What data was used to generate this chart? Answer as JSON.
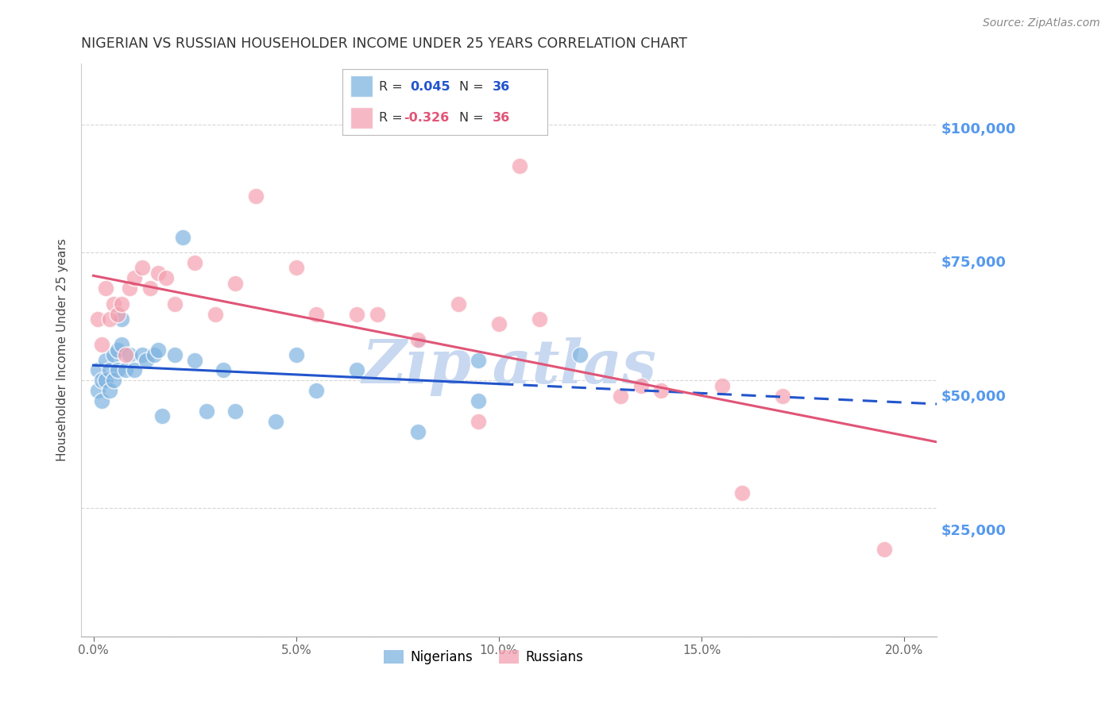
{
  "title": "NIGERIAN VS RUSSIAN HOUSEHOLDER INCOME UNDER 25 YEARS CORRELATION CHART",
  "source": "Source: ZipAtlas.com",
  "ylabel": "Householder Income Under 25 years",
  "xlabel_ticks": [
    "0.0%",
    "5.0%",
    "10.0%",
    "15.0%",
    "20.0%"
  ],
  "xlabel_vals": [
    0.0,
    0.05,
    0.1,
    0.15,
    0.2
  ],
  "ytick_vals": [
    0,
    25000,
    50000,
    75000,
    100000
  ],
  "ytick_labels": [
    "",
    "$25,000",
    "$50,000",
    "$75,000",
    "$100,000"
  ],
  "xlim": [
    -0.003,
    0.208
  ],
  "ylim": [
    5000,
    112000
  ],
  "nigerian_R": 0.045,
  "nigerian_N": 36,
  "russian_R": -0.326,
  "russian_N": 36,
  "nigerian_color": "#7eb3e0",
  "russian_color": "#f4a0b0",
  "nigerian_line_color": "#2255cc",
  "russian_line_color": "#e05577",
  "background_color": "#ffffff",
  "grid_color": "#cccccc",
  "title_color": "#333333",
  "axis_label_color": "#444444",
  "ytick_color": "#5599ee",
  "watermark_color": "#c8d8f0",
  "nigerian_x": [
    0.001,
    0.001,
    0.002,
    0.002,
    0.003,
    0.003,
    0.004,
    0.004,
    0.005,
    0.005,
    0.006,
    0.006,
    0.007,
    0.007,
    0.008,
    0.009,
    0.01,
    0.012,
    0.013,
    0.015,
    0.016,
    0.017,
    0.02,
    0.022,
    0.025,
    0.028,
    0.032,
    0.035,
    0.045,
    0.05,
    0.055,
    0.065,
    0.08,
    0.095,
    0.095,
    0.12
  ],
  "nigerian_y": [
    52000,
    48000,
    50000,
    46000,
    54000,
    50000,
    52000,
    48000,
    55000,
    50000,
    56000,
    52000,
    62000,
    57000,
    52000,
    55000,
    52000,
    55000,
    54000,
    55000,
    56000,
    43000,
    55000,
    78000,
    54000,
    44000,
    52000,
    44000,
    42000,
    55000,
    48000,
    52000,
    40000,
    54000,
    46000,
    55000
  ],
  "russian_x": [
    0.001,
    0.002,
    0.003,
    0.004,
    0.005,
    0.006,
    0.007,
    0.008,
    0.009,
    0.01,
    0.012,
    0.014,
    0.016,
    0.018,
    0.02,
    0.025,
    0.03,
    0.035,
    0.04,
    0.05,
    0.055,
    0.065,
    0.07,
    0.08,
    0.09,
    0.095,
    0.1,
    0.105,
    0.11,
    0.13,
    0.135,
    0.14,
    0.155,
    0.16,
    0.17,
    0.195
  ],
  "russian_y": [
    62000,
    57000,
    68000,
    62000,
    65000,
    63000,
    65000,
    55000,
    68000,
    70000,
    72000,
    68000,
    71000,
    70000,
    65000,
    73000,
    63000,
    69000,
    86000,
    72000,
    63000,
    63000,
    63000,
    58000,
    65000,
    42000,
    61000,
    92000,
    62000,
    47000,
    49000,
    48000,
    49000,
    28000,
    47000,
    17000
  ]
}
